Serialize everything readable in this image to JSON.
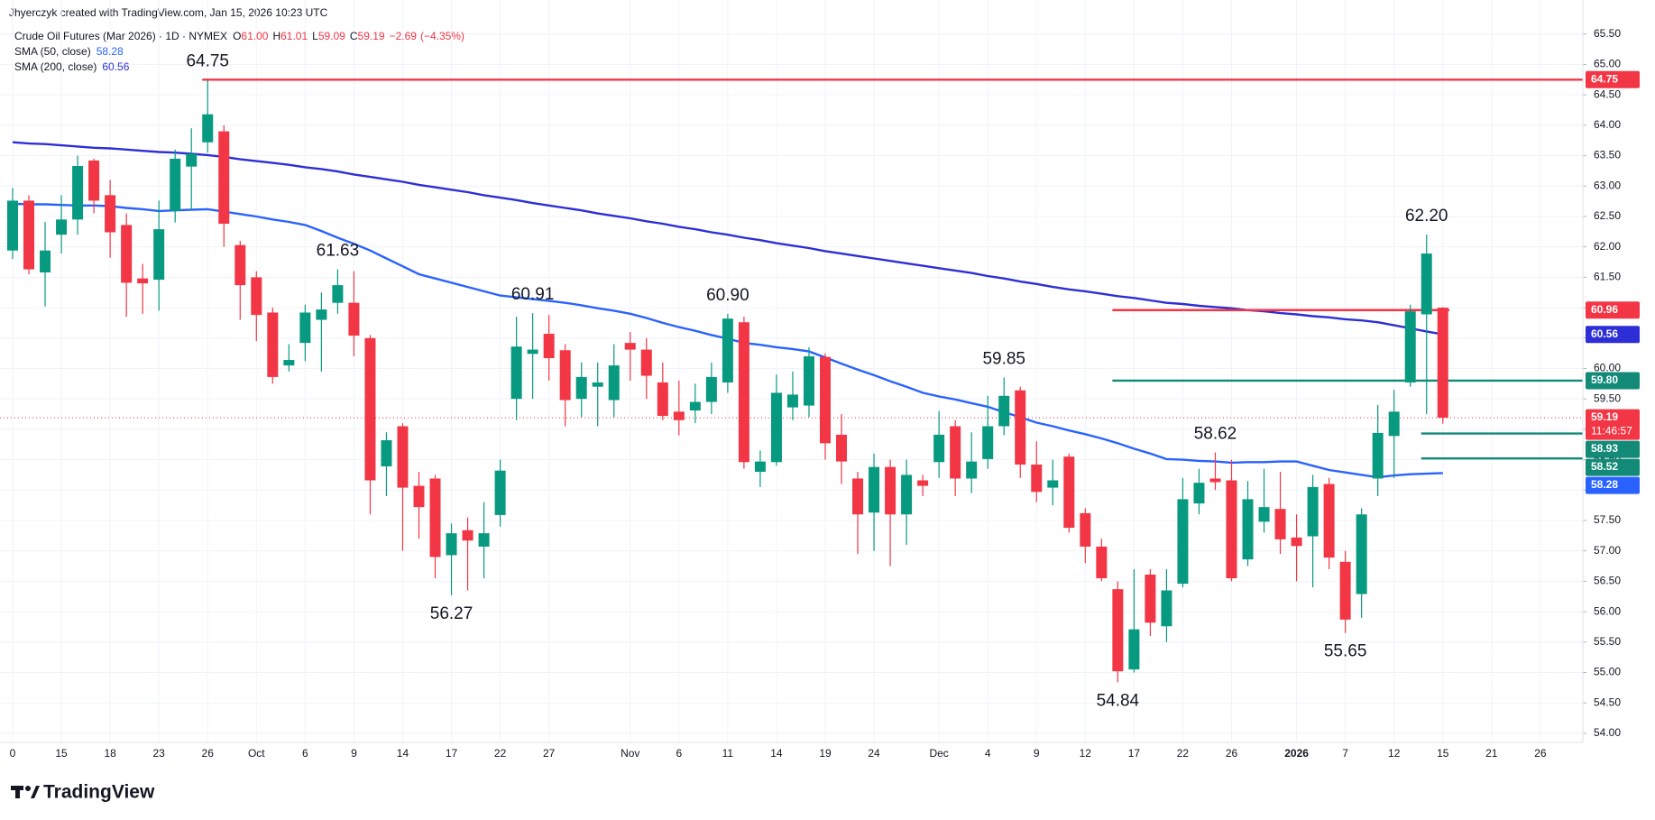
{
  "header": "Jhyerczyk created with TradingView.com, Jan 15, 2026 10:23 UTC",
  "brand": "TradingView",
  "chart_data": {
    "type": "candlestick",
    "legend": {
      "symbol": "Crude Oil Futures (Mar 2026) · 1D · NYMEX",
      "fields": [
        {
          "name": "O",
          "value": 61,
          "label": "61.00"
        },
        {
          "name": "H",
          "value": 61.01,
          "label": "61.01"
        },
        {
          "name": "L",
          "value": 59.09,
          "label": "59.09"
        },
        {
          "name": "C",
          "value": 59.19,
          "label": "59.19"
        }
      ],
      "change": {
        "value": -2.69,
        "label": "−2.69"
      },
      "change_pct": {
        "value": -4.35,
        "label": "(−4.35%)"
      }
    },
    "up_color": "#089981",
    "down_color": "#f23645",
    "open": [
      61.94,
      62.76,
      61.58,
      62.2,
      62.45,
      63.42,
      62.85,
      62.36,
      61.48,
      61.46,
      62.59,
      63.32,
      63.72,
      63.9,
      62.03,
      61.5,
      60.92,
      60.05,
      60.42,
      60.8,
      61.08,
      61.08,
      60.5,
      58.39,
      59.05,
      58.07,
      58.19,
      56.93,
      57.34,
      57.07,
      57.59,
      59.5,
      60.24,
      60.57,
      60.3,
      59.5,
      59.7,
      59.48,
      60.42,
      60.31,
      59.77,
      59.29,
      59.31,
      59.45,
      59.77,
      60.76,
      58.3,
      58.46,
      59.36,
      59.39,
      60.19,
      58.91,
      58.19,
      57.63,
      58.38,
      57.6,
      58.16,
      58.46,
      59.05,
      58.19,
      58.51,
      59.05,
      59.64,
      58.42,
      58.04,
      58.55,
      57.62,
      57.07,
      56.37,
      55.05,
      56.61,
      55.76,
      56.46,
      57.78,
      58.19,
      58.16,
      56.86,
      57.48,
      57.69,
      57.22,
      57.24,
      58.1,
      56.82,
      56.29,
      58.19,
      58.89,
      59.77,
      60.89,
      61.0
    ],
    "high": [
      62.97,
      62.85,
      62.41,
      62.85,
      63.5,
      63.45,
      63.1,
      62.55,
      61.72,
      62.76,
      63.6,
      63.95,
      64.75,
      64.0,
      62.1,
      61.6,
      61.0,
      60.4,
      61.05,
      61.25,
      61.63,
      61.6,
      60.55,
      58.95,
      59.1,
      58.3,
      58.25,
      57.45,
      57.55,
      57.8,
      58.5,
      60.85,
      60.91,
      60.88,
      60.4,
      60.1,
      60.1,
      60.4,
      60.6,
      60.5,
      60.1,
      59.8,
      59.75,
      60.1,
      60.9,
      60.85,
      58.65,
      59.9,
      59.95,
      60.35,
      60.25,
      59.25,
      58.3,
      58.6,
      58.5,
      58.5,
      58.25,
      59.3,
      59.15,
      58.95,
      59.55,
      59.85,
      59.7,
      58.8,
      58.5,
      58.6,
      57.7,
      57.2,
      56.5,
      56.7,
      56.7,
      56.7,
      58.2,
      58.35,
      58.62,
      58.5,
      58.15,
      58.35,
      58.3,
      57.6,
      58.25,
      58.2,
      57.0,
      57.7,
      59.4,
      59.65,
      61.05,
      62.2,
      61.01
    ],
    "low": [
      61.8,
      61.55,
      61.02,
      61.89,
      62.2,
      62.55,
      61.82,
      60.85,
      60.9,
      60.95,
      62.4,
      62.6,
      63.55,
      62.0,
      60.8,
      60.45,
      59.75,
      59.95,
      60.12,
      59.95,
      60.9,
      60.2,
      57.6,
      57.9,
      57.0,
      57.2,
      56.55,
      56.27,
      56.35,
      56.55,
      57.4,
      59.15,
      59.5,
      59.8,
      59.05,
      59.2,
      59.05,
      59.2,
      59.8,
      59.5,
      59.15,
      58.9,
      59.1,
      59.25,
      59.6,
      58.35,
      58.05,
      58.4,
      59.15,
      59.2,
      58.5,
      58.1,
      56.95,
      57.0,
      56.75,
      57.1,
      57.9,
      58.2,
      57.9,
      57.95,
      58.35,
      58.9,
      58.2,
      57.8,
      57.75,
      57.3,
      56.8,
      56.5,
      54.84,
      55.0,
      55.6,
      55.5,
      56.4,
      57.6,
      58.0,
      56.5,
      56.75,
      57.3,
      56.95,
      56.5,
      56.4,
      56.7,
      55.65,
      55.9,
      57.9,
      58.2,
      59.7,
      59.25,
      59.09
    ],
    "close": [
      62.76,
      61.63,
      61.94,
      62.45,
      63.33,
      62.76,
      62.24,
      61.41,
      61.4,
      62.29,
      63.45,
      63.53,
      64.18,
      62.38,
      61.37,
      60.88,
      59.86,
      60.14,
      60.92,
      60.97,
      61.37,
      60.54,
      58.16,
      58.82,
      58.04,
      57.72,
      56.9,
      57.29,
      57.17,
      57.29,
      58.32,
      60.36,
      60.31,
      60.17,
      59.48,
      59.86,
      59.77,
      60.05,
      60.31,
      59.88,
      59.22,
      59.15,
      59.45,
      59.86,
      60.82,
      58.46,
      58.47,
      59.6,
      59.57,
      60.2,
      58.77,
      58.47,
      57.6,
      58.38,
      57.6,
      58.25,
      58.07,
      58.91,
      58.19,
      58.47,
      59.05,
      59.55,
      58.42,
      57.97,
      58.16,
      57.38,
      57.07,
      56.55,
      55.02,
      55.71,
      55.82,
      56.35,
      57.85,
      58.12,
      58.13,
      56.55,
      57.85,
      57.72,
      57.19,
      57.08,
      58.05,
      56.89,
      55.87,
      57.6,
      58.94,
      59.29,
      60.94,
      61.89,
      59.19
    ],
    "series": [
      {
        "name": "SMA (50, close)",
        "color": "#2962ff",
        "last": {
          "value": 58.28,
          "label": "58.28"
        },
        "values": [
          62.71,
          62.7,
          62.7,
          62.69,
          62.68,
          62.68,
          62.67,
          62.64,
          62.62,
          62.59,
          62.6,
          62.61,
          62.62,
          62.58,
          62.54,
          62.5,
          62.45,
          62.41,
          62.36,
          62.26,
          62.15,
          62.05,
          61.94,
          61.81,
          61.68,
          61.55,
          61.48,
          61.41,
          61.34,
          61.27,
          61.2,
          61.17,
          61.14,
          61.11,
          61.08,
          61.04,
          60.99,
          60.95,
          60.9,
          60.83,
          60.75,
          60.68,
          60.62,
          60.55,
          60.49,
          60.42,
          60.39,
          60.35,
          60.32,
          60.28,
          60.18,
          60.08,
          59.98,
          59.89,
          59.79,
          59.7,
          59.6,
          59.54,
          59.49,
          59.43,
          59.37,
          59.28,
          59.2,
          59.11,
          59.05,
          58.98,
          58.92,
          58.85,
          58.77,
          58.68,
          58.6,
          58.51,
          58.5,
          58.48,
          58.47,
          58.45,
          58.46,
          58.46,
          58.47,
          58.47,
          58.4,
          58.33,
          58.29,
          58.25,
          58.21,
          58.24,
          58.26,
          58.27,
          58.28
        ]
      },
      {
        "name": "SMA (200, close)",
        "color": "#2d2ed6",
        "last": {
          "value": 60.56,
          "label": "60.56"
        },
        "values": [
          63.72,
          63.7,
          63.69,
          63.67,
          63.65,
          63.63,
          63.62,
          63.6,
          63.58,
          63.56,
          63.55,
          63.53,
          63.51,
          63.48,
          63.44,
          63.41,
          63.38,
          63.35,
          63.31,
          63.28,
          63.24,
          63.19,
          63.15,
          63.11,
          63.07,
          63.02,
          62.98,
          62.94,
          62.9,
          62.85,
          62.81,
          62.77,
          62.72,
          62.68,
          62.64,
          62.6,
          62.55,
          62.51,
          62.47,
          62.42,
          62.38,
          62.33,
          62.29,
          62.24,
          62.2,
          62.15,
          62.11,
          62.06,
          62.02,
          61.98,
          61.93,
          61.89,
          61.85,
          61.81,
          61.77,
          61.73,
          61.69,
          61.65,
          61.61,
          61.57,
          61.52,
          61.48,
          61.43,
          61.39,
          61.34,
          61.3,
          61.27,
          61.23,
          61.19,
          61.16,
          61.12,
          61.08,
          61.06,
          61.03,
          61.01,
          60.99,
          60.96,
          60.94,
          60.91,
          60.89,
          60.86,
          60.84,
          60.81,
          60.79,
          60.76,
          60.71,
          60.66,
          60.61,
          60.56
        ]
      }
    ],
    "annotations": [
      {
        "value": 64.75,
        "label": "64.75",
        "position": "above"
      },
      {
        "value": 61.63,
        "label": "61.63",
        "position": "above"
      },
      {
        "value": 60.91,
        "label": "60.91",
        "position": "above"
      },
      {
        "value": 60.9,
        "label": "60.90",
        "position": "above"
      },
      {
        "value": 59.85,
        "label": "59.85",
        "position": "above"
      },
      {
        "value": 58.62,
        "label": "58.62",
        "position": "above"
      },
      {
        "value": 62.2,
        "label": "62.20",
        "position": "above"
      },
      {
        "value": 56.27,
        "label": "56.27",
        "position": "below"
      },
      {
        "value": 54.84,
        "label": "54.84",
        "position": "below"
      },
      {
        "value": 55.65,
        "label": "55.65",
        "position": "below"
      }
    ],
    "price_tags": [
      {
        "value": 64.75,
        "label": "64.75",
        "color": "#f23645"
      },
      {
        "value": 60.96,
        "label": "60.96",
        "color": "#f23645"
      },
      {
        "value": 60.56,
        "label": "60.56",
        "color": "#2d2ed6"
      },
      {
        "value": 59.8,
        "label": "59.80",
        "color": "#138a78"
      },
      {
        "value": 59.19,
        "label": "59.19",
        "color": "#f23645",
        "countdown": "11:46:57"
      },
      {
        "value": 58.93,
        "label": "58.93",
        "color": "#138a78"
      },
      {
        "value": 58.52,
        "label": "58.52",
        "color": "#138a78"
      },
      {
        "value": 58.28,
        "label": "58.28",
        "color": "#2962ff"
      }
    ],
    "ylim": [
      53.85,
      66.06
    ],
    "yticks": [
      {
        "value": 54,
        "label": "54.00"
      },
      {
        "value": 54.5,
        "label": "54.50"
      },
      {
        "value": 55,
        "label": "55.00"
      },
      {
        "value": 55.5,
        "label": "55.50"
      },
      {
        "value": 56,
        "label": "56.00"
      },
      {
        "value": 56.5,
        "label": "56.50"
      },
      {
        "value": 57,
        "label": "57.00"
      },
      {
        "value": 57.5,
        "label": "57.50"
      },
      {
        "value": 58,
        "label": "58.00"
      },
      {
        "value": 58.5,
        "label": "58.50"
      },
      {
        "value": 59,
        "label": "59.00"
      },
      {
        "value": 59.5,
        "label": "59.50"
      },
      {
        "value": 60,
        "label": "60.00"
      },
      {
        "value": 60.5,
        "label": "60.50"
      },
      {
        "value": 61,
        "label": "61.00"
      },
      {
        "value": 61.5,
        "label": "61.50"
      },
      {
        "value": 62,
        "label": "62.00"
      },
      {
        "value": 62.5,
        "label": "62.50"
      },
      {
        "value": 63,
        "label": "63.00"
      },
      {
        "value": 63.5,
        "label": "63.50"
      },
      {
        "value": 64,
        "label": "64.00"
      },
      {
        "value": 64.5,
        "label": "64.50"
      },
      {
        "value": 65,
        "label": "65.00"
      },
      {
        "value": 65.5,
        "label": "65.50"
      }
    ],
    "xticks": [
      {
        "value": 0,
        "label": "0"
      },
      {
        "value": 3,
        "label": "15"
      },
      {
        "value": 6,
        "label": "18"
      },
      {
        "value": 9,
        "label": "23"
      },
      {
        "value": 12,
        "label": "26"
      },
      {
        "value": 15,
        "label": "Oct"
      },
      {
        "value": 18,
        "label": "6"
      },
      {
        "value": 21,
        "label": "9"
      },
      {
        "value": 24,
        "label": "14"
      },
      {
        "value": 27,
        "label": "17"
      },
      {
        "value": 30,
        "label": "22"
      },
      {
        "value": 33,
        "label": "27"
      },
      {
        "value": 38,
        "label": "Nov"
      },
      {
        "value": 41,
        "label": "6"
      },
      {
        "value": 44,
        "label": "11"
      },
      {
        "value": 47,
        "label": "14"
      },
      {
        "value": 50,
        "label": "19"
      },
      {
        "value": 53,
        "label": "24"
      },
      {
        "value": 57,
        "label": "Dec"
      },
      {
        "value": 60,
        "label": "4"
      },
      {
        "value": 63,
        "label": "9"
      },
      {
        "value": 66,
        "label": "12"
      },
      {
        "value": 69,
        "label": "17"
      },
      {
        "value": 72,
        "label": "22"
      },
      {
        "value": 75,
        "label": "26"
      },
      {
        "value": 79,
        "label": "2026"
      },
      {
        "value": 82,
        "label": "7"
      },
      {
        "value": 85,
        "label": "12"
      },
      {
        "value": 88,
        "label": "15"
      },
      {
        "value": 91,
        "label": "21"
      },
      {
        "value": 94,
        "label": "26"
      }
    ],
    "grid": true
  }
}
